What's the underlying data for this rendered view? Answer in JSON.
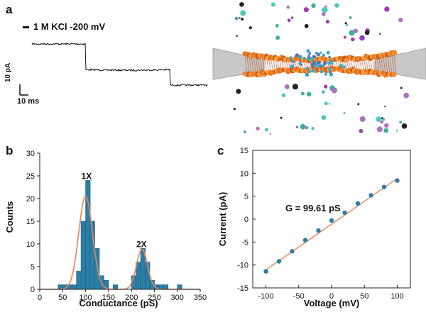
{
  "panel_a": {
    "letter": "a",
    "legend": "1 M KCl -200 mV",
    "scale_current": "10 pA",
    "scale_time": "10 ms"
  },
  "panel_b": {
    "letter": "b"
  },
  "panel_c": {
    "letter": "c"
  },
  "colors": {
    "bar": "#2b7fa6",
    "fit": "#e8855c",
    "point": "#2b7fa6",
    "axis": "#222222"
  },
  "chart_data": [
    {
      "type": "bar",
      "title": "",
      "xlabel": "Conductance (pS)",
      "ylabel": "Counts",
      "xlim": [
        0,
        350
      ],
      "ylim": [
        0,
        30
      ],
      "xticks": [
        0,
        50,
        100,
        150,
        200,
        250,
        300,
        350
      ],
      "yticks": [
        0,
        5,
        10,
        15,
        20,
        25,
        30
      ],
      "bin_width": 10,
      "bins": [
        {
          "x": 40,
          "count": 1
        },
        {
          "x": 50,
          "count": 1
        },
        {
          "x": 60,
          "count": 1
        },
        {
          "x": 70,
          "count": 1
        },
        {
          "x": 80,
          "count": 4
        },
        {
          "x": 90,
          "count": 15
        },
        {
          "x": 100,
          "count": 24
        },
        {
          "x": 110,
          "count": 15
        },
        {
          "x": 120,
          "count": 9
        },
        {
          "x": 130,
          "count": 3
        },
        {
          "x": 140,
          "count": 2
        },
        {
          "x": 160,
          "count": 1
        },
        {
          "x": 200,
          "count": 3
        },
        {
          "x": 210,
          "count": 6
        },
        {
          "x": 220,
          "count": 9
        },
        {
          "x": 230,
          "count": 6
        },
        {
          "x": 240,
          "count": 2
        },
        {
          "x": 250,
          "count": 1
        },
        {
          "x": 260,
          "count": 1
        },
        {
          "x": 270,
          "count": 1
        },
        {
          "x": 300,
          "count": 1
        }
      ],
      "fit": [
        {
          "amplitude": 20.5,
          "mean": 100,
          "sigma": 15
        },
        {
          "amplitude": 8.8,
          "mean": 223,
          "sigma": 12
        }
      ],
      "annotations": [
        {
          "text": "1X",
          "x": 102,
          "y": 24.3
        },
        {
          "text": "2X",
          "x": 222,
          "y": 9.3
        }
      ]
    },
    {
      "type": "scatter",
      "title": "",
      "xlabel": "Voltage (mV)",
      "ylabel": "Current (pA)",
      "xlim": [
        -120,
        120
      ],
      "ylim": [
        -15,
        15
      ],
      "xticks": [
        -100,
        -50,
        0,
        50,
        100
      ],
      "yticks": [
        -15,
        -10,
        -5,
        0,
        5,
        10,
        15
      ],
      "x": [
        -100,
        -80,
        -60,
        -40,
        -20,
        0,
        20,
        40,
        60,
        80,
        100
      ],
      "y": [
        -11.4,
        -9.2,
        -7.0,
        -4.6,
        -2.5,
        -0.3,
        1.4,
        3.4,
        5.2,
        7.0,
        8.4
      ],
      "fit": {
        "slope": 0.09961,
        "intercept": -1.1
      },
      "annotation": "G = 99.61 pS"
    }
  ]
}
